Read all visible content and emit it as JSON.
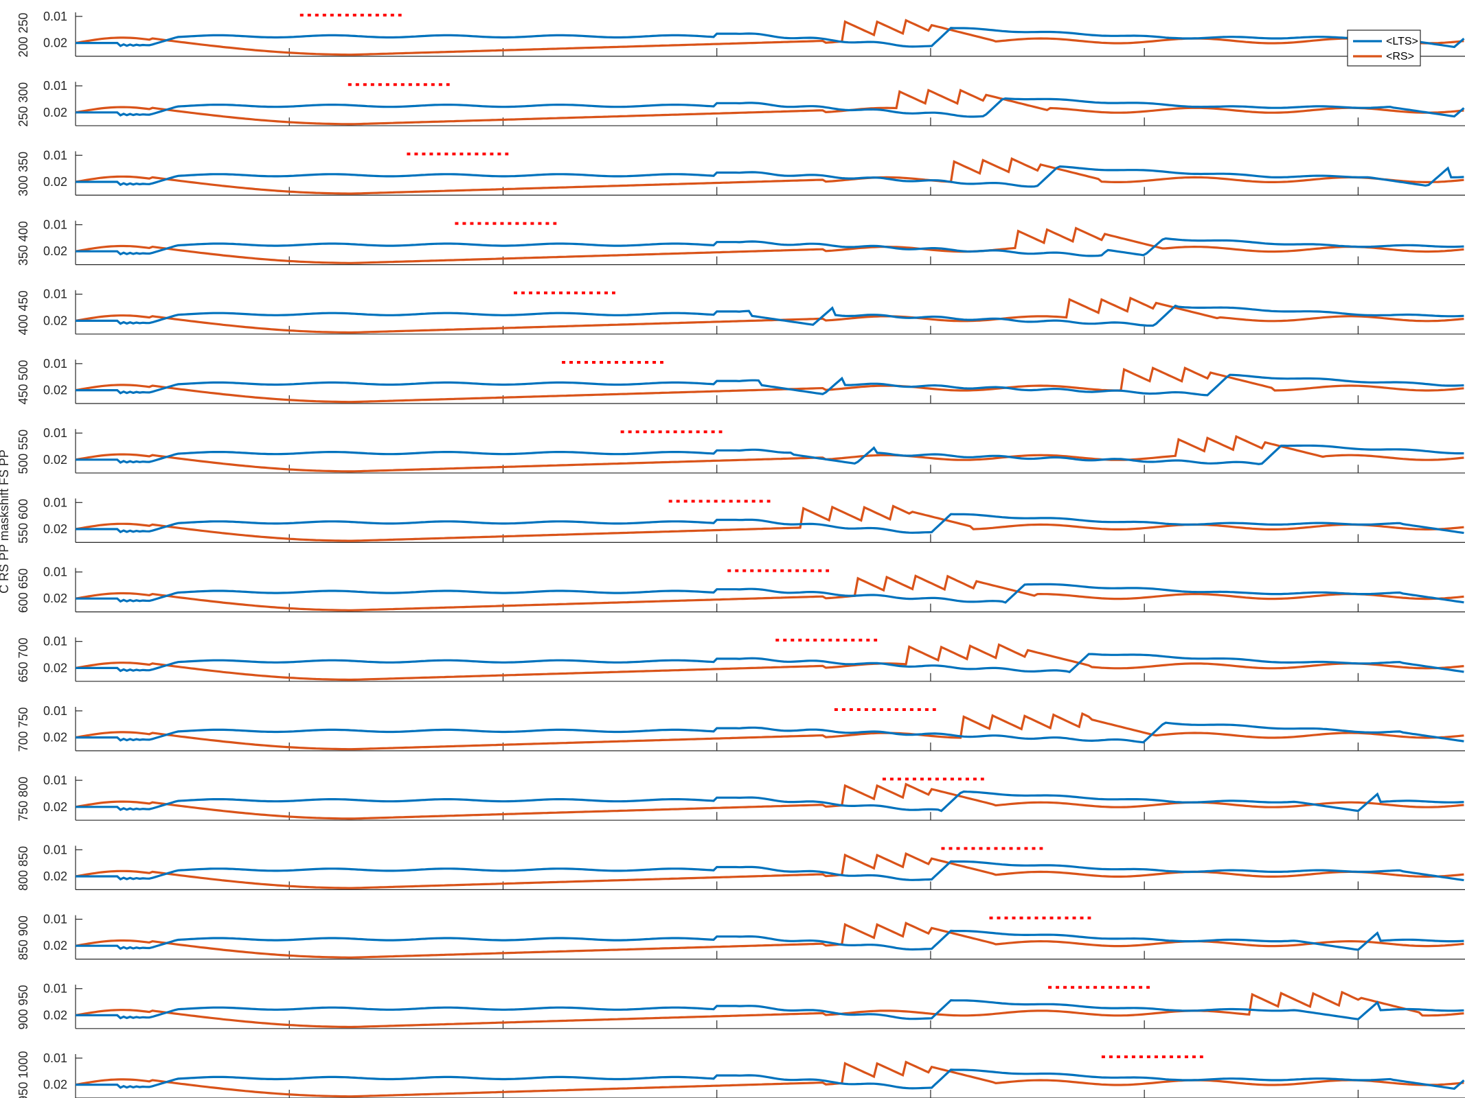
{
  "chart_data": {
    "type": "line",
    "xlim": [
      0,
      1300
    ],
    "ylim": [
      0.005,
      0.021
    ],
    "x_ticks": [
      0,
      200,
      400,
      600,
      800,
      1000,
      1200
    ],
    "y_ticks": [
      "0.01",
      "0.02"
    ],
    "ylabel_fragments": [
      "C RS PP",
      "maskshift",
      "FS PP"
    ],
    "legend_placement": "top-right",
    "legend": [
      "<LTS>",
      "<RS>"
    ],
    "colors": {
      "lts": "#0072BD",
      "rs": "#D95319",
      "marker": "#FF0000"
    },
    "panel_left_labels": [
      "200 250",
      "250 300",
      "300 350",
      "350 400",
      "400 450",
      "450 500",
      "500 550",
      "550 600",
      "600 650",
      "650 700",
      "700 750",
      "750 800",
      "800 850",
      "850 900",
      "900 950",
      "950 1000"
    ],
    "panels": [
      {
        "marker": [
          210,
          305
        ],
        "lts_jump": 800,
        "rs_hump": [
          720,
          800
        ],
        "lts_late": 1290
      },
      {
        "marker": [
          255,
          350
        ],
        "lts_jump": 850,
        "rs_hump": [
          770,
          850
        ],
        "lts_late": 1290
      },
      {
        "marker": [
          310,
          405
        ],
        "lts_jump": 900,
        "rs_hump": [
          820,
          900
        ],
        "lts_late": 1265
      },
      {
        "marker": [
          355,
          450
        ],
        "lts_jump": 960,
        "rs_hump": [
          880,
          960
        ],
        "lts_late": 1000
      },
      {
        "marker": [
          410,
          505
        ],
        "lts_jump": 1010,
        "rs_hump": [
          930,
          1010
        ],
        "lts_late": 690
      },
      {
        "marker": [
          455,
          550
        ],
        "lts_jump": 1060,
        "rs_hump": [
          980,
          1060
        ],
        "lts_late": 700
      },
      {
        "marker": [
          510,
          605
        ],
        "lts_jump": 1110,
        "rs_hump": [
          1030,
          1110
        ],
        "lts_late": 730
      },
      {
        "marker": [
          555,
          650
        ],
        "lts_jump": 800,
        "rs_hump": [
          680,
          780
        ],
        "lts_late": 1300
      },
      {
        "marker": [
          610,
          705
        ],
        "lts_jump": 870,
        "rs_hump": [
          730,
          840
        ],
        "lts_late": 1300
      },
      {
        "marker": [
          655,
          750
        ],
        "lts_jump": 930,
        "rs_hump": [
          780,
          890
        ],
        "lts_late": 1300
      },
      {
        "marker": [
          710,
          805
        ],
        "lts_jump": 1000,
        "rs_hump": [
          830,
          950
        ],
        "lts_late": 1300
      },
      {
        "marker": [
          755,
          850
        ],
        "lts_jump": 810,
        "rs_hump": [
          720,
          800
        ],
        "lts_late": 1200
      },
      {
        "marker": [
          810,
          905
        ],
        "lts_jump": 800,
        "rs_hump": [
          720,
          800
        ],
        "lts_late": 1300
      },
      {
        "marker": [
          855,
          950
        ],
        "lts_jump": 800,
        "rs_hump": [
          720,
          800
        ],
        "lts_late": 1200
      },
      {
        "marker": [
          910,
          1005
        ],
        "lts_jump": 800,
        "rs_hump": [
          1100,
          1200
        ],
        "lts_late": 1200
      },
      {
        "marker": [
          960,
          1055
        ],
        "lts_jump": 800,
        "rs_hump": [
          720,
          800
        ],
        "lts_late": 1290
      }
    ]
  }
}
